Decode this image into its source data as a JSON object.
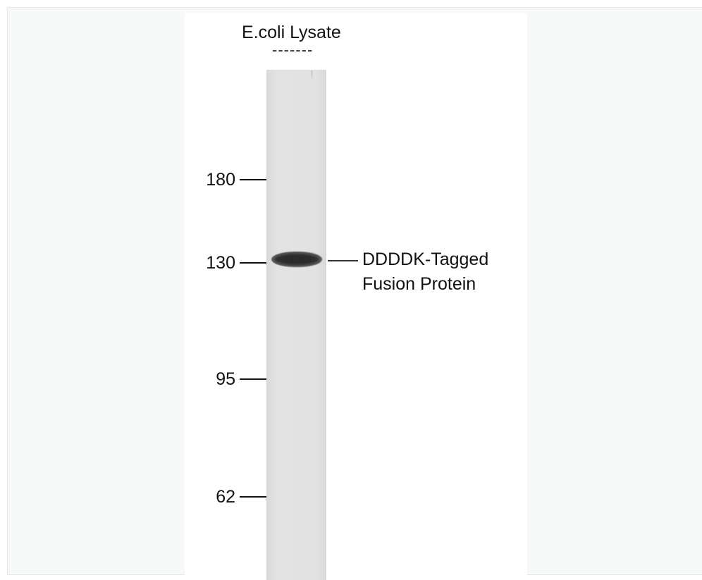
{
  "blot": {
    "lane_label": "E.coli Lysate",
    "lane_dashes": "-------",
    "markers": [
      {
        "label": "180"
      },
      {
        "label": "130"
      },
      {
        "label": "95"
      },
      {
        "label": "62"
      }
    ],
    "band_annotation": {
      "line1": "DDDDK-Tagged",
      "line2": "Fusion Protein"
    }
  }
}
